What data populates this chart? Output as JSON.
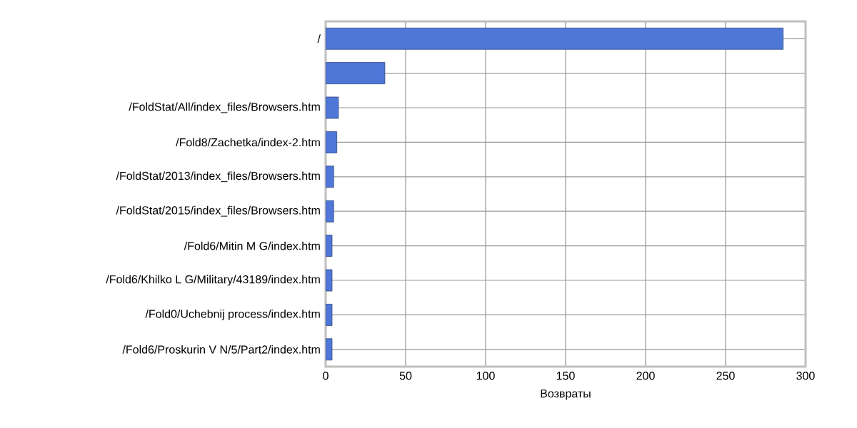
{
  "chart_data": {
    "type": "bar",
    "orientation": "horizontal",
    "xlabel": "Возвраты",
    "categories": [
      "/",
      null,
      "/FoldStat/All/index_files/Browsers.htm",
      "/Fold8/Zachetka/index-2.htm",
      "/FoldStat/2013/index_files/Browsers.htm",
      "/FoldStat/2015/index_files/Browsers.htm",
      "/Fold6/Mitin M G/index.htm",
      "/Fold6/Khilko L G/Military/43189/index.htm",
      "/Fold0/Uchebnij process/index.htm",
      "/Fold6/Proskurin V N/5/Part2/index.htm"
    ],
    "values": [
      286,
      37,
      8,
      7,
      5,
      5,
      4,
      4,
      4,
      4
    ],
    "color": "#4f77d8",
    "xlim": [
      0,
      300
    ],
    "xticks": [
      0,
      50,
      100,
      150,
      200,
      250,
      300
    ],
    "grid": true
  }
}
